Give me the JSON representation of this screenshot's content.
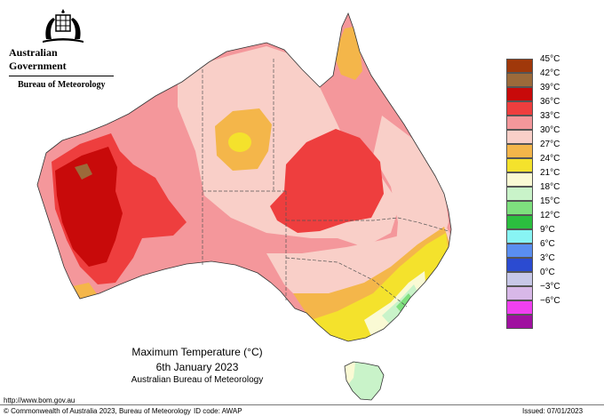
{
  "branding": {
    "government": "Australian Government",
    "bureau": "Bureau of Meteorology"
  },
  "map": {
    "title": "Maximum Temperature (°C)",
    "date": "6th January 2023",
    "source": "Australian Bureau of Meteorology",
    "variable": "Maximum temperature",
    "unit": "°C"
  },
  "legend": {
    "items": [
      {
        "label": "45°C",
        "color": "#a0380a"
      },
      {
        "label": "42°C",
        "color": "#9c6a3a"
      },
      {
        "label": "39°C",
        "color": "#c80a0a"
      },
      {
        "label": "36°C",
        "color": "#ee3e3e"
      },
      {
        "label": "33°C",
        "color": "#f4979b"
      },
      {
        "label": "30°C",
        "color": "#f9cfc8"
      },
      {
        "label": "27°C",
        "color": "#f4b64a"
      },
      {
        "label": "24°C",
        "color": "#f4e22c"
      },
      {
        "label": "21°C",
        "color": "#fafad4"
      },
      {
        "label": "18°C",
        "color": "#c9f3c9"
      },
      {
        "label": "15°C",
        "color": "#7ee07e"
      },
      {
        "label": "12°C",
        "color": "#2bbf3f"
      },
      {
        "label": "9°C",
        "color": "#88f4f4"
      },
      {
        "label": "6°C",
        "color": "#5a8ef0"
      },
      {
        "label": "3°C",
        "color": "#2b4bd1"
      },
      {
        "label": "0°C",
        "color": "#c8c8e8"
      },
      {
        "label": "−3°C",
        "color": "#d8b8e8"
      },
      {
        "label": "−6°C",
        "color": "#f040f0"
      },
      {
        "label": "",
        "color": "#a010a0"
      }
    ]
  },
  "footer": {
    "url": "http://www.bom.gov.au",
    "copyright": "© Commonwealth of Australia 2023, Bureau of Meteorology",
    "id_code": "ID code: AWAP",
    "issued": "Issued: 07/01/2023"
  }
}
